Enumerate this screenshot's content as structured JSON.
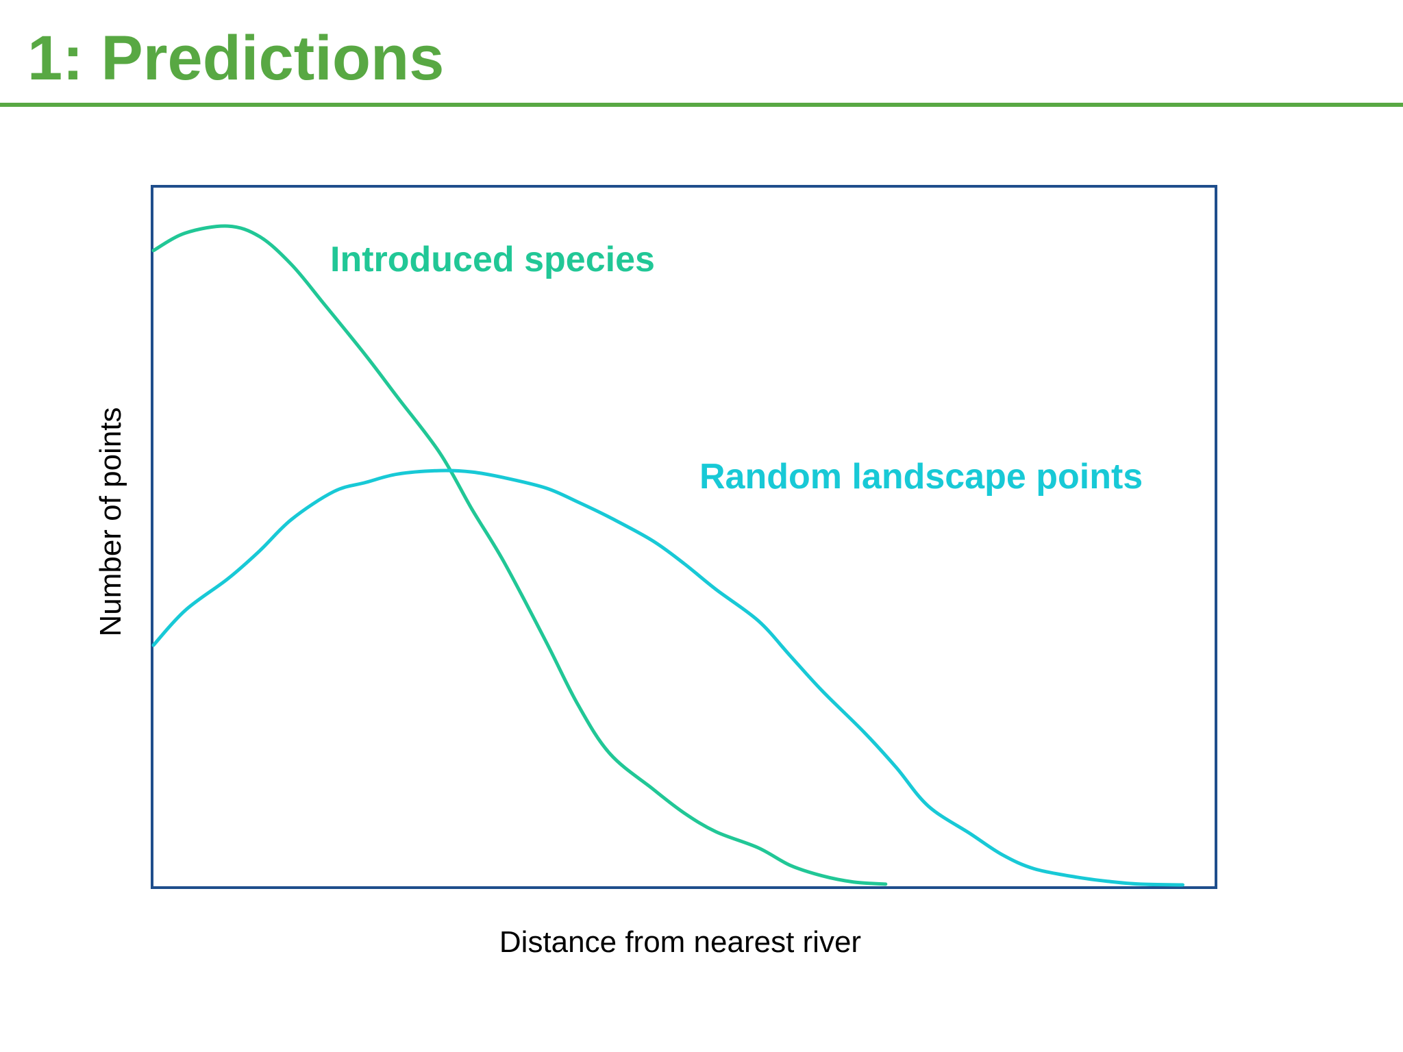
{
  "slide": {
    "title": "1: Predictions"
  },
  "colors": {
    "title": "#58a843",
    "rule": "#58a843",
    "frame": "#1f4e8c",
    "introduced": "#21c796",
    "random": "#18c9d6",
    "axis_text": "#000000"
  },
  "chart_data": {
    "type": "line",
    "xlabel": "Distance from nearest river",
    "ylabel": "Number of points",
    "xlim": [
      0,
      100
    ],
    "ylim": [
      0,
      100
    ],
    "grid": false,
    "series": [
      {
        "name": "Introduced species",
        "x": [
          0,
          3,
          7,
          10,
          13,
          16,
          20,
          23,
          27,
          30,
          33,
          37,
          40,
          43,
          47,
          50,
          53,
          57,
          60,
          63,
          66,
          69
        ],
        "y": [
          91,
          93.5,
          94.5,
          93,
          89,
          83.5,
          76,
          70,
          62,
          54,
          46.5,
          35,
          26,
          19,
          14,
          10.5,
          7.8,
          5.5,
          3,
          1.5,
          0.6,
          0.3
        ]
      },
      {
        "name": "Random landscape points",
        "x": [
          0,
          3,
          7,
          10,
          13,
          17,
          20,
          23,
          27,
          30,
          33,
          37,
          40,
          43,
          47,
          50,
          53,
          57,
          60,
          63,
          67,
          70,
          73,
          77,
          80,
          83,
          87,
          90,
          93,
          97
        ],
        "y": [
          34.5,
          39.5,
          44,
          48,
          52.5,
          56.5,
          57.8,
          59,
          59.5,
          59.3,
          58.5,
          57,
          55,
          52.8,
          49.5,
          46.2,
          42.5,
          38,
          33,
          28,
          22,
          17,
          11.5,
          7.5,
          4.5,
          2.5,
          1.3,
          0.7,
          0.3,
          0.2
        ]
      }
    ]
  }
}
